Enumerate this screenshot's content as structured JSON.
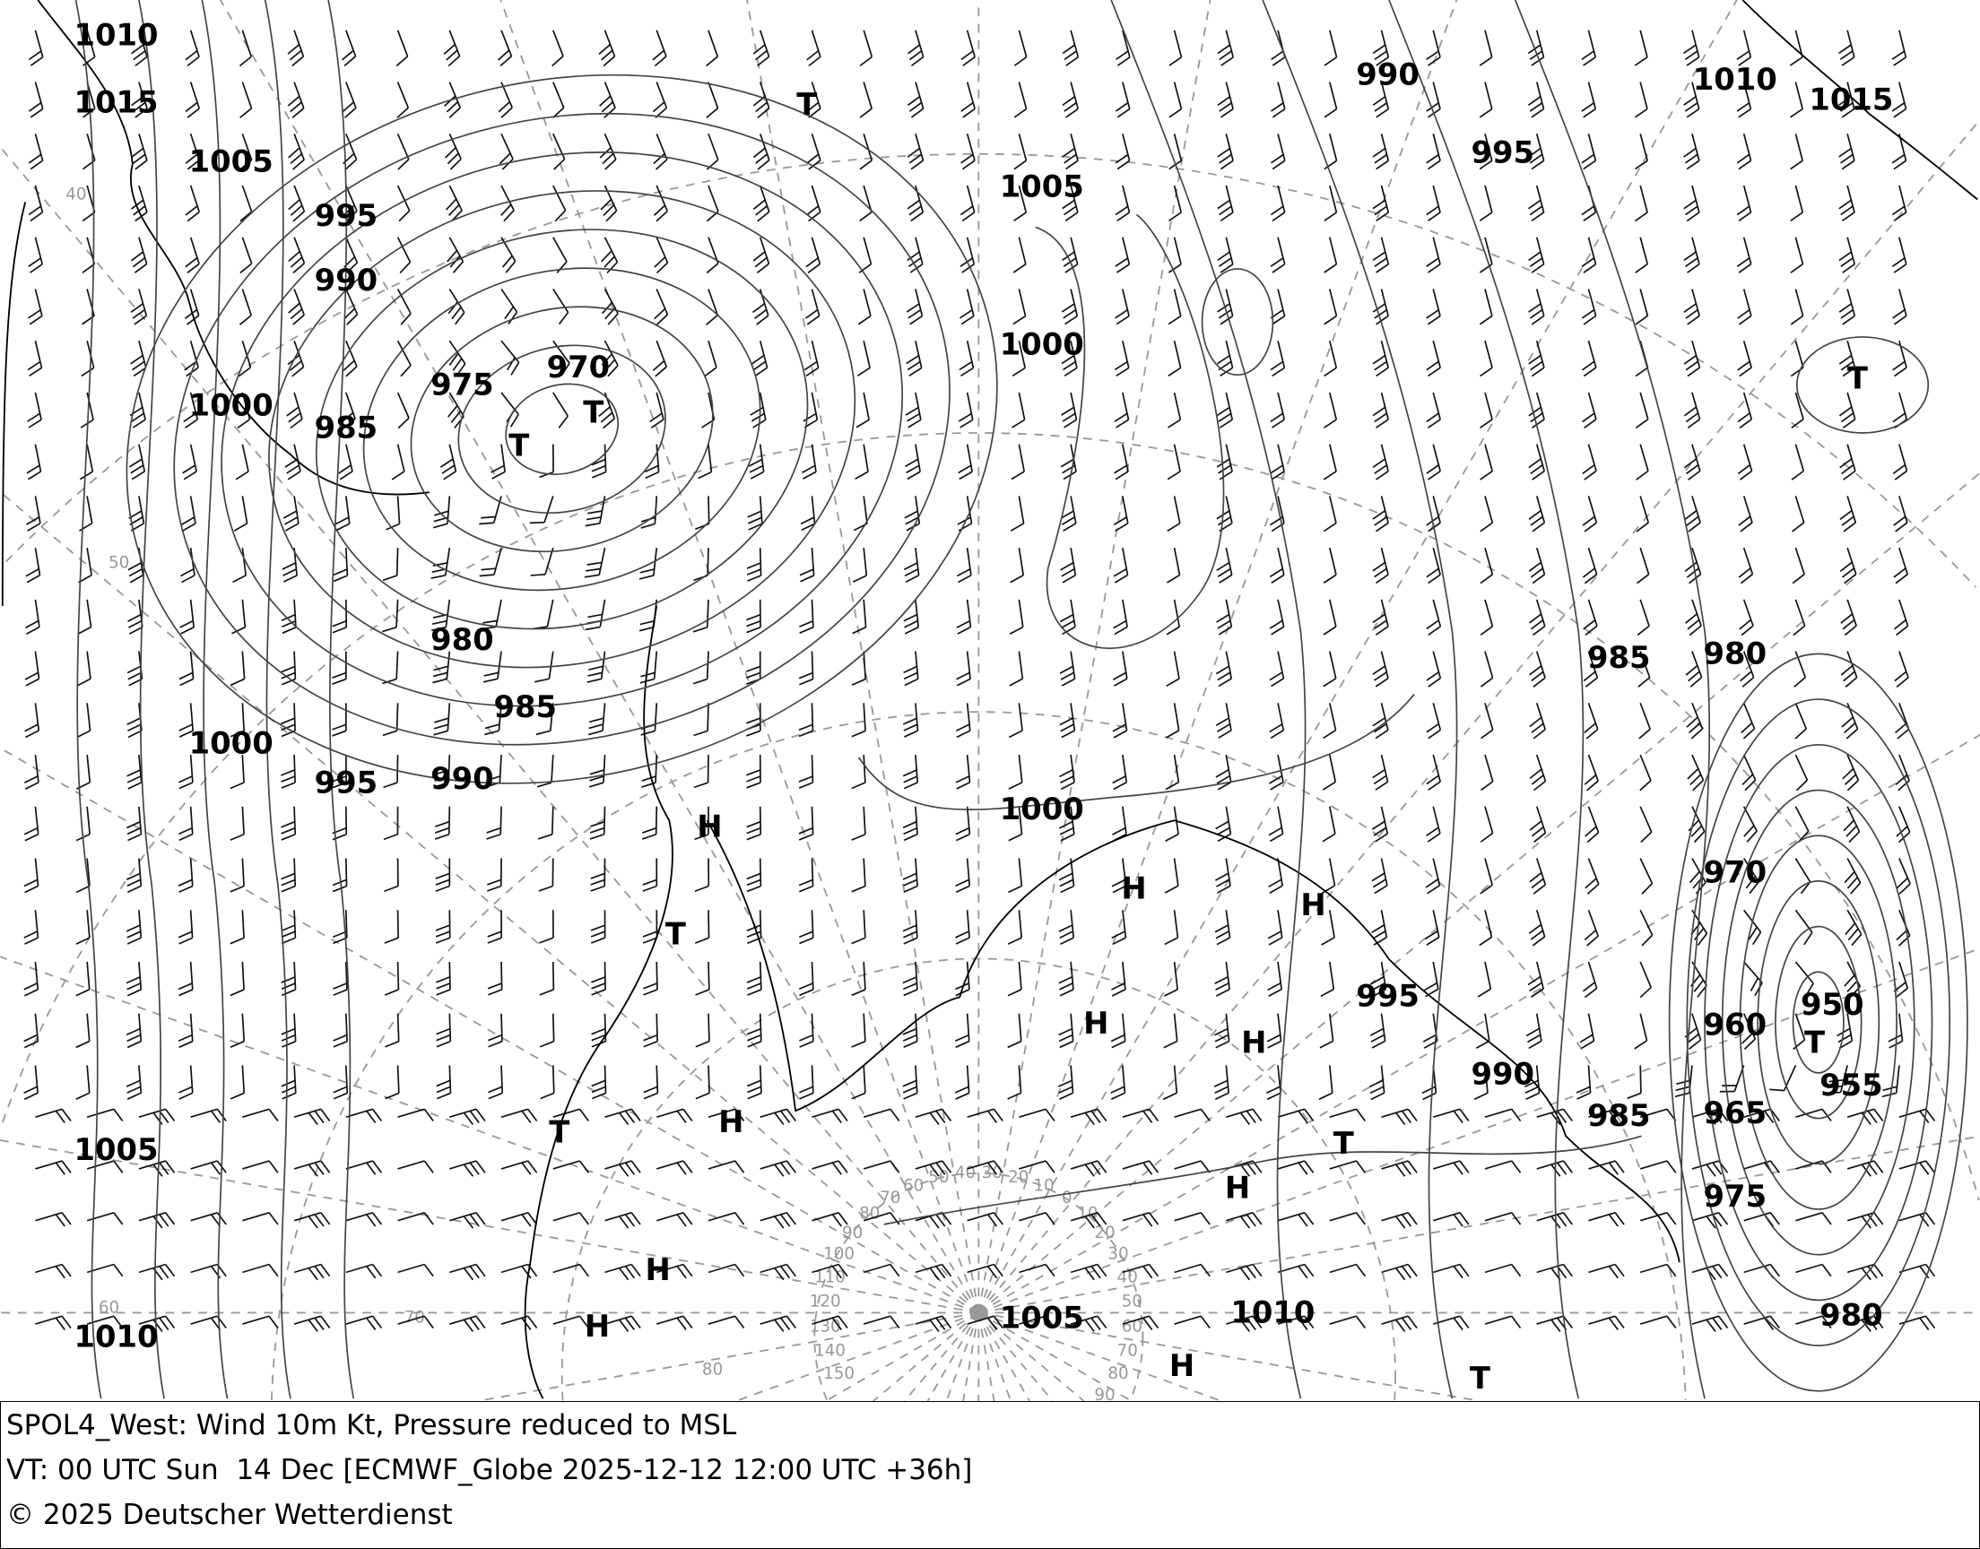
{
  "map": {
    "pressure_labels_hpa": [
      "1010",
      "1015",
      "1005",
      "995",
      "990",
      "1000",
      "985",
      "975",
      "970",
      "980",
      "985",
      "1000",
      "995",
      "990",
      "1005",
      "1010",
      "990",
      "995",
      "1005",
      "1000",
      "1010",
      "1015",
      "1000",
      "985",
      "980",
      "970",
      "995",
      "990",
      "960",
      "950",
      "955",
      "965",
      "985",
      "975",
      "980",
      "1005",
      "1010"
    ],
    "high_marker": "H",
    "low_marker": "T",
    "high_count": 10,
    "low_count": 9,
    "latitude_labels": [
      "40",
      "50",
      "60",
      "70",
      "80"
    ],
    "longitude_labels": [
      "0",
      "10",
      "20",
      "30",
      "40",
      "50",
      "60",
      "70",
      "80",
      "90",
      "100",
      "110",
      "120",
      "130",
      "140",
      "150",
      "10",
      "20",
      "30",
      "40",
      "50",
      "60",
      "70",
      "80",
      "90"
    ],
    "pole_label": "90",
    "isobar_color": "#444444",
    "grid_color": "#999999"
  },
  "footer": {
    "line1": "SPOL4_West: Wind 10m Kt, Pressure reduced to MSL",
    "line2": "VT: 00 UTC Sun  14 Dec [ECMWF_Globe 2025-12-12 12:00 UTC +36h]",
    "line3": "© 2025 Deutscher Wetterdienst"
  }
}
